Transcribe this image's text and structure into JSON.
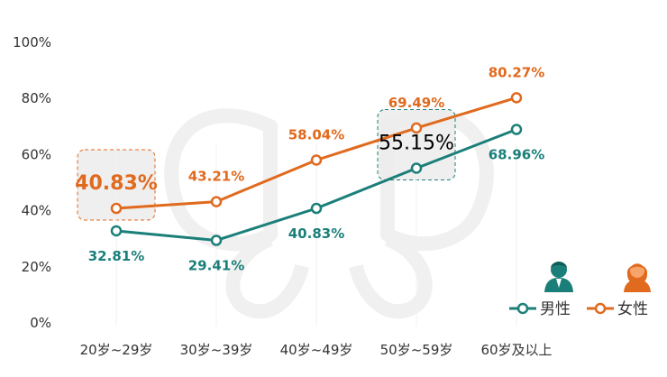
{
  "chart_data": {
    "type": "line",
    "categories": [
      "20岁~29岁",
      "30岁~39岁",
      "40岁~49岁",
      "50岁~59岁",
      "60岁及以上"
    ],
    "series": [
      {
        "name": "男性",
        "values": [
          32.81,
          29.41,
          40.83,
          55.15,
          68.96
        ],
        "labels": [
          "32.81%",
          "29.41%",
          "40.83%",
          "55.15%",
          "68.96%"
        ],
        "color": "#1b7f79"
      },
      {
        "name": "女性",
        "values": [
          40.83,
          43.21,
          58.04,
          69.49,
          80.27
        ],
        "labels": [
          "40.83%",
          "43.21%",
          "58.04%",
          "69.49%",
          "80.27%"
        ],
        "color": "#e06a1e"
      }
    ],
    "yticks": [
      "0%",
      "20%",
      "40%",
      "60%",
      "80%",
      "100%"
    ],
    "ylim": [
      0,
      100
    ],
    "title": "",
    "xlabel": "",
    "ylabel": "",
    "grid": false,
    "legend_position": "bottom-right",
    "highlights": [
      {
        "series": "女性",
        "category": "20岁~29岁",
        "label": "40.83%",
        "color": "#e06a1e"
      },
      {
        "series": "男性",
        "category": "50岁~59岁",
        "label": "55.15%",
        "color": "#000000"
      }
    ],
    "icons": {
      "male": "man-avatar-icon",
      "female": "woman-avatar-icon"
    }
  }
}
